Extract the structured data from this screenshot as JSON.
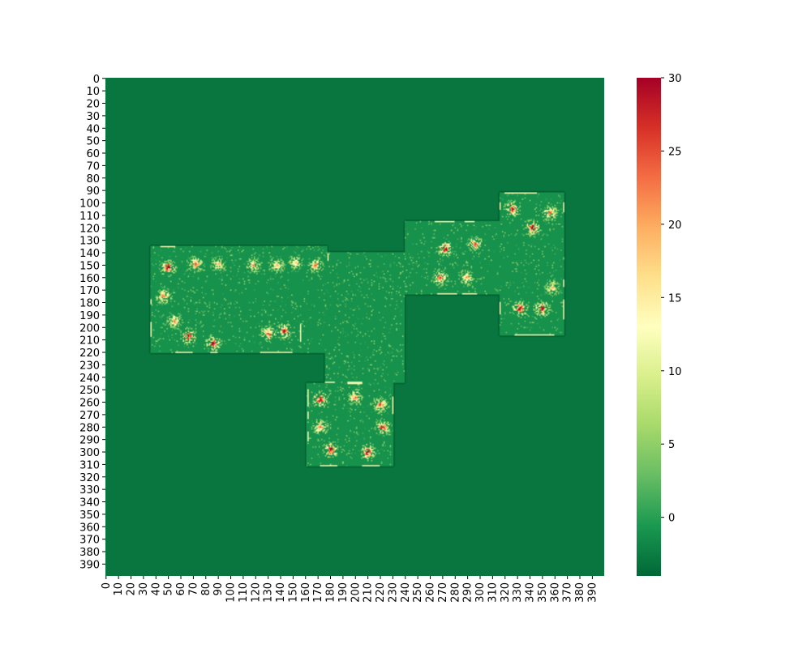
{
  "chart_data": {
    "type": "heatmap",
    "title": "",
    "xlabel": "",
    "ylabel": "",
    "grid_size": [
      400,
      400
    ],
    "xlim": [
      0,
      400
    ],
    "ylim": [
      0,
      400
    ],
    "x_tick_labels": [
      "0",
      "10",
      "20",
      "30",
      "40",
      "50",
      "60",
      "70",
      "80",
      "90",
      "100",
      "110",
      "120",
      "130",
      "140",
      "150",
      "160",
      "170",
      "180",
      "190",
      "200",
      "210",
      "220",
      "230",
      "240",
      "250",
      "260",
      "270",
      "280",
      "290",
      "300",
      "310",
      "320",
      "330",
      "340",
      "350",
      "360",
      "370",
      "380",
      "390"
    ],
    "y_tick_labels": [
      "0",
      "10",
      "20",
      "30",
      "40",
      "50",
      "60",
      "70",
      "80",
      "90",
      "100",
      "110",
      "120",
      "130",
      "140",
      "150",
      "160",
      "170",
      "180",
      "190",
      "200",
      "210",
      "220",
      "230",
      "240",
      "250",
      "260",
      "270",
      "280",
      "290",
      "300",
      "310",
      "320",
      "330",
      "340",
      "350",
      "360",
      "370",
      "380",
      "390"
    ],
    "colormap": "RdYlGn_r",
    "colorbar": {
      "vmin": -4,
      "vmax": 30,
      "tick_labels": [
        "0",
        "5",
        "10",
        "15",
        "20",
        "25",
        "30"
      ],
      "colors": [
        "#006837",
        "#1a9850",
        "#66bd63",
        "#a6d96a",
        "#d9ef8b",
        "#ffffbf",
        "#fee08b",
        "#fdae61",
        "#f46d43",
        "#d73027",
        "#a50026"
      ]
    },
    "background_value": -3,
    "floor_value": -1,
    "floor_regions": [
      {
        "x": [
          36,
          178
        ],
        "y": [
          135,
          221
        ]
      },
      {
        "x": [
          178,
          240
        ],
        "y": [
          140,
          183
        ]
      },
      {
        "x": [
          176,
          240
        ],
        "y": [
          183,
          245
        ]
      },
      {
        "x": [
          240,
          316
        ],
        "y": [
          115,
          174
        ]
      },
      {
        "x": [
          316,
          368
        ],
        "y": [
          92,
          207
        ]
      },
      {
        "x": [
          161,
          231
        ],
        "y": [
          245,
          312
        ]
      }
    ],
    "hotspots": [
      {
        "x": 50,
        "y": 152,
        "peak": 30
      },
      {
        "x": 72,
        "y": 149,
        "peak": 25
      },
      {
        "x": 90,
        "y": 149,
        "peak": 18
      },
      {
        "x": 118,
        "y": 150,
        "peak": 20
      },
      {
        "x": 137,
        "y": 150,
        "peak": 18
      },
      {
        "x": 152,
        "y": 148,
        "peak": 18
      },
      {
        "x": 168,
        "y": 150,
        "peak": 22
      },
      {
        "x": 46,
        "y": 175,
        "peak": 22
      },
      {
        "x": 55,
        "y": 195,
        "peak": 20
      },
      {
        "x": 66,
        "y": 207,
        "peak": 30
      },
      {
        "x": 86,
        "y": 213,
        "peak": 30
      },
      {
        "x": 130,
        "y": 205,
        "peak": 25
      },
      {
        "x": 143,
        "y": 203,
        "peak": 28
      },
      {
        "x": 272,
        "y": 137,
        "peak": 30
      },
      {
        "x": 296,
        "y": 133,
        "peak": 25
      },
      {
        "x": 268,
        "y": 160,
        "peak": 25
      },
      {
        "x": 289,
        "y": 160,
        "peak": 20
      },
      {
        "x": 326,
        "y": 105,
        "peak": 28
      },
      {
        "x": 342,
        "y": 120,
        "peak": 30
      },
      {
        "x": 356,
        "y": 108,
        "peak": 22
      },
      {
        "x": 332,
        "y": 185,
        "peak": 30
      },
      {
        "x": 350,
        "y": 185,
        "peak": 30
      },
      {
        "x": 358,
        "y": 168,
        "peak": 18
      },
      {
        "x": 172,
        "y": 258,
        "peak": 30
      },
      {
        "x": 200,
        "y": 256,
        "peak": 22
      },
      {
        "x": 220,
        "y": 262,
        "peak": 25
      },
      {
        "x": 172,
        "y": 280,
        "peak": 22
      },
      {
        "x": 222,
        "y": 280,
        "peak": 28
      },
      {
        "x": 180,
        "y": 298,
        "peak": 30
      },
      {
        "x": 210,
        "y": 300,
        "peak": 30
      }
    ],
    "edge_marks": [
      {
        "x": [
          44,
          56
        ],
        "y": [
          135,
          136
        ]
      },
      {
        "x": [
          68,
          78
        ],
        "y": [
          134,
          135
        ]
      },
      {
        "x": [
          88,
          96
        ],
        "y": [
          134,
          135
        ]
      },
      {
        "x": [
          108,
          122
        ],
        "y": [
          134,
          135
        ]
      },
      {
        "x": [
          130,
          144
        ],
        "y": [
          134,
          135
        ]
      },
      {
        "x": [
          164,
          172
        ],
        "y": [
          134,
          135
        ]
      },
      {
        "x": [
          36,
          37
        ],
        "y": [
          178,
          182
        ]
      },
      {
        "x": [
          36,
          37
        ],
        "y": [
          196,
          208
        ]
      },
      {
        "x": [
          178,
          179
        ],
        "y": [
          141,
          147
        ]
      },
      {
        "x": [
          156,
          157
        ],
        "y": [
          198,
          212
        ]
      },
      {
        "x": [
          56,
          70
        ],
        "y": [
          220,
          221
        ]
      },
      {
        "x": [
          84,
          90
        ],
        "y": [
          220,
          221
        ]
      },
      {
        "x": [
          124,
          150
        ],
        "y": [
          220,
          221
        ]
      },
      {
        "x": [
          264,
          280
        ],
        "y": [
          115,
          116
        ]
      },
      {
        "x": [
          288,
          296
        ],
        "y": [
          115,
          116
        ]
      },
      {
        "x": [
          266,
          282
        ],
        "y": [
          173,
          174
        ]
      },
      {
        "x": [
          286,
          298
        ],
        "y": [
          173,
          175
        ]
      },
      {
        "x": [
          320,
          346
        ],
        "y": [
          92,
          93
        ]
      },
      {
        "x": [
          316,
          317
        ],
        "y": [
          100,
          106
        ]
      },
      {
        "x": [
          367,
          368
        ],
        "y": [
          100,
          108
        ]
      },
      {
        "x": [
          367,
          368
        ],
        "y": [
          162,
          168
        ]
      },
      {
        "x": [
          367,
          368
        ],
        "y": [
          178,
          194
        ]
      },
      {
        "x": [
          316,
          317
        ],
        "y": [
          180,
          190
        ]
      },
      {
        "x": [
          328,
          360
        ],
        "y": [
          206,
          207
        ]
      },
      {
        "x": [
          168,
          184
        ],
        "y": [
          244,
          245
        ]
      },
      {
        "x": [
          194,
          206
        ],
        "y": [
          244,
          246
        ]
      },
      {
        "x": [
          162,
          163
        ],
        "y": [
          250,
          264
        ]
      },
      {
        "x": [
          162,
          163
        ],
        "y": [
          268,
          274
        ]
      },
      {
        "x": [
          162,
          163
        ],
        "y": [
          284,
          292
        ]
      },
      {
        "x": [
          172,
          186
        ],
        "y": [
          311,
          312
        ]
      },
      {
        "x": [
          206,
          220
        ],
        "y": [
          311,
          312
        ]
      },
      {
        "x": [
          230,
          231
        ],
        "y": [
          256,
          270
        ]
      }
    ]
  }
}
